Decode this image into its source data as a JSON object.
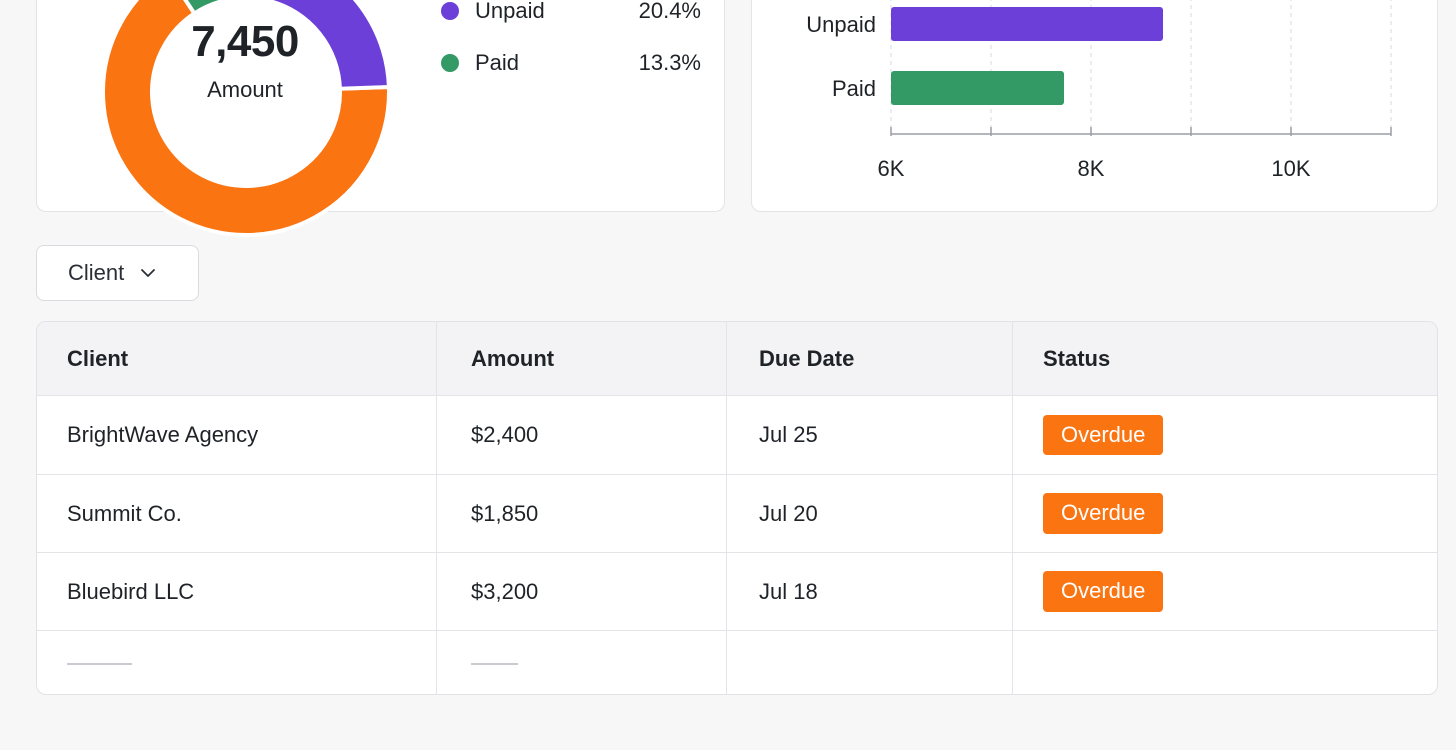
{
  "donut": {
    "center_value": "7,450",
    "center_label": "Amount",
    "segments": [
      {
        "name": "Overdue",
        "share": 66.3,
        "color": "#fa7412"
      },
      {
        "name": "Paid",
        "share": 13.3,
        "color": "#339965"
      },
      {
        "name": "Unpaid",
        "share": 20.4,
        "color": "#6c3fd8"
      }
    ],
    "legend": [
      {
        "label": "Unpaid",
        "pct": "20.4%",
        "color": "#6c3fd8"
      },
      {
        "label": "Paid",
        "pct": "13.3%",
        "color": "#339965"
      }
    ]
  },
  "chart_data": {
    "type": "bar",
    "orientation": "horizontal",
    "categories": [
      "Unpaid",
      "Paid"
    ],
    "values": [
      8720,
      7730
    ],
    "xlim": [
      6000,
      11000
    ],
    "x_tick_labels": [
      "6K",
      "8K",
      "10K"
    ],
    "grid": true,
    "colors": [
      "#6c3fd8",
      "#339965"
    ]
  },
  "filter": {
    "label": "Client"
  },
  "table": {
    "headers": [
      "Client",
      "Amount",
      "Due Date",
      "Status"
    ],
    "rows": [
      {
        "client": "BrightWave Agency",
        "amount": "$2,400",
        "due": "Jul 25",
        "status": "Overdue"
      },
      {
        "client": "Summit Co.",
        "amount": "$1,850",
        "due": "Jul 20",
        "status": "Overdue"
      },
      {
        "client": "Bluebird LLC",
        "amount": "$3,200",
        "due": "Jul 18",
        "status": "Overdue"
      }
    ],
    "status_color": "#fa7412"
  }
}
